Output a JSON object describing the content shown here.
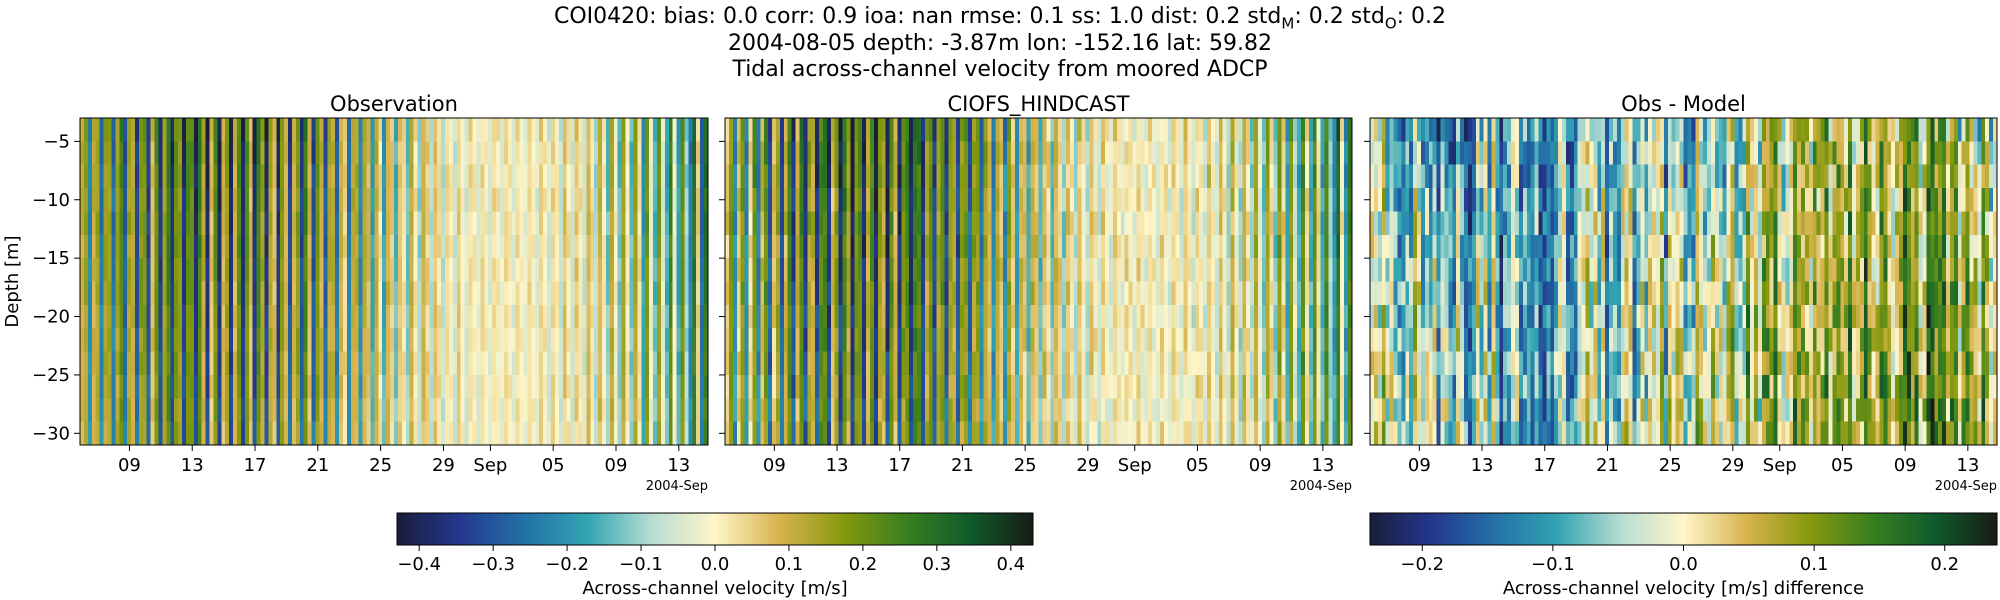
{
  "figure": {
    "title_line1": "COI0420: bias: 0.0  corr: 0.9  ioa: nan  rmse: 0.1  ss: 1.0  dist: 0.2  std",
    "title_sub_m": "M",
    "title_mid": ": 0.2  std",
    "title_sub_o": "O",
    "title_end": ": 0.2",
    "title_line2": "2004-08-05 depth: -3.87m lon: -152.16 lat: 59.82",
    "title_line3": "Tidal across-channel velocity from moored ADCP"
  },
  "chart_data": [
    {
      "type": "heatmap",
      "title": "Observation",
      "ylabel": "Depth [m]",
      "ylim": [
        -31,
        -3
      ],
      "yticks": [
        -5,
        -10,
        -15,
        -20,
        -25,
        -30
      ],
      "xticks": [
        "09",
        "13",
        "17",
        "21",
        "25",
        "29",
        "Sep",
        "05",
        "09",
        "13"
      ],
      "x_offset_label": "2004-Sep",
      "date_range": [
        "2004-08-05",
        "2004-09-15"
      ],
      "colorbar": "cbar1"
    },
    {
      "type": "heatmap",
      "title": "CIOFS_HINDCAST",
      "ylim": [
        -31,
        -3
      ],
      "xticks": [
        "09",
        "13",
        "17",
        "21",
        "25",
        "29",
        "Sep",
        "05",
        "09",
        "13"
      ],
      "x_offset_label": "2004-Sep",
      "date_range": [
        "2004-08-05",
        "2004-09-15"
      ],
      "colorbar": "cbar1"
    },
    {
      "type": "heatmap",
      "title": "Obs - Model",
      "ylim": [
        -31,
        -3
      ],
      "xticks": [
        "09",
        "13",
        "17",
        "21",
        "25",
        "29",
        "Sep",
        "05",
        "09",
        "13"
      ],
      "x_offset_label": "2004-Sep",
      "date_range": [
        "2004-08-05",
        "2004-09-15"
      ],
      "colorbar": "cbar2"
    }
  ],
  "colorbars": {
    "cbar1": {
      "label": "Across-channel velocity [m/s]",
      "range": [
        -0.43,
        0.43
      ],
      "ticks": [
        -0.4,
        -0.3,
        -0.2,
        -0.1,
        0.0,
        0.1,
        0.2,
        0.3,
        0.4
      ],
      "tick_labels": [
        "−0.4",
        "−0.3",
        "−0.2",
        "−0.1",
        "0.0",
        "0.1",
        "0.2",
        "0.3",
        "0.4"
      ]
    },
    "cbar2": {
      "label": "Across-channel velocity [m/s] difference",
      "range": [
        -0.24,
        0.24
      ],
      "ticks": [
        -0.2,
        -0.1,
        0.0,
        0.1,
        0.2
      ],
      "tick_labels": [
        "−0.2",
        "−0.1",
        "0.0",
        "0.1",
        "0.2"
      ]
    }
  },
  "yticks_labels": [
    "−5",
    "−10",
    "−15",
    "−20",
    "−25",
    "−30"
  ],
  "colormap": [
    "#191d3a",
    "#23388f",
    "#2371a7",
    "#32a5b3",
    "#b7ddd2",
    "#fff6c9",
    "#d8b34f",
    "#879a0f",
    "#397f1e",
    "#105c2c",
    "#191c16"
  ]
}
